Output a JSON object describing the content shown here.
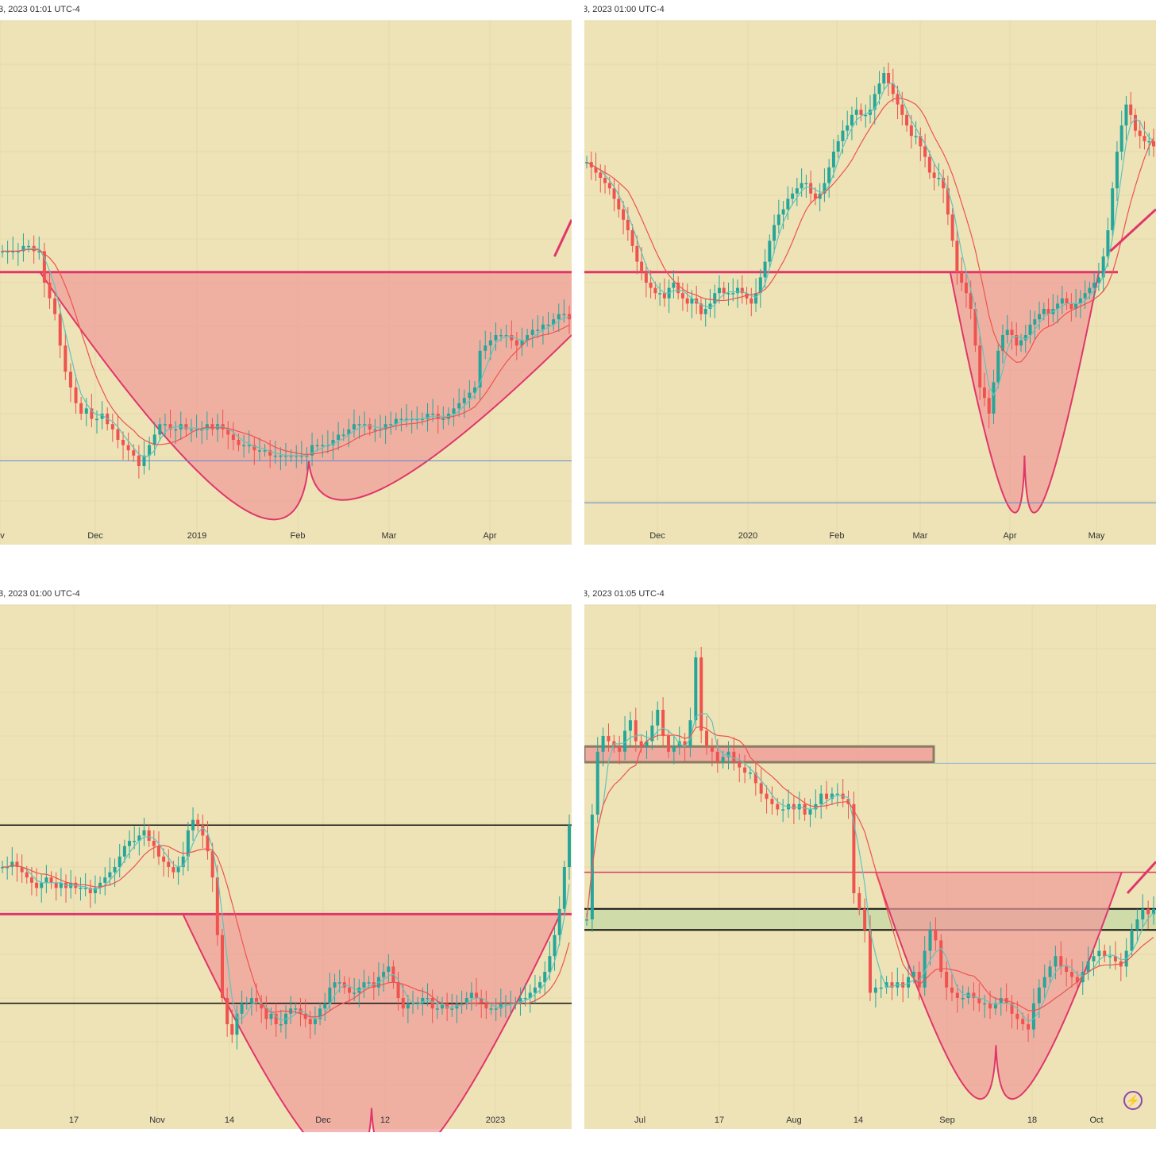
{
  "chart_data": [
    {
      "type": "candlestick",
      "timestamp": "3, 2023 01:01 UTC-4",
      "tick_labels": [
        "ov",
        "Dec",
        "2019",
        "Feb",
        "Mar",
        "Apr"
      ],
      "ylim": [
        0,
        100
      ],
      "colors": {
        "bg": "#ede3b6",
        "up": "#26a69a",
        "down": "#ef5350",
        "cup": "#e0366b",
        "cup_fill": "#ef9a9a",
        "ma_fast": "#5ec4c0",
        "ma_slow": "#ef5350",
        "support": "#5b86d6"
      },
      "resistance": 52,
      "support": 16,
      "cup": {
        "x0": 0.07,
        "x1": 1.0,
        "bottom": 16,
        "bottom_x": 0.54,
        "rim_left": 52,
        "rim_right": 40
      },
      "handle_arrow": {
        "x0": 0.97,
        "y0": 55,
        "x1": 1.0,
        "y1": 62
      },
      "closes": [
        56,
        56,
        56,
        56,
        57,
        57,
        56,
        56,
        50,
        47,
        44,
        38,
        33,
        30,
        27,
        25,
        26,
        24,
        24,
        25,
        23,
        22,
        20,
        19,
        18,
        17,
        15,
        17,
        19,
        21,
        23,
        23,
        22,
        22,
        23,
        22,
        22,
        22,
        22,
        23,
        22,
        23,
        22,
        21,
        20,
        19,
        19,
        19,
        18,
        18,
        18,
        17,
        17,
        17,
        17,
        17,
        17,
        17,
        17,
        19,
        19,
        19,
        19,
        20,
        21,
        21,
        22,
        23,
        23,
        23,
        22,
        22,
        22,
        23,
        23,
        24,
        24,
        24,
        24,
        24,
        24,
        25,
        25,
        24,
        24,
        25,
        26,
        27,
        28,
        29,
        30,
        37,
        38,
        39,
        40,
        40,
        40,
        39,
        38,
        39,
        40,
        41,
        41,
        42,
        42,
        43,
        44,
        44,
        43
      ]
    },
    {
      "type": "candlestick",
      "timestamp": "3, 2023 01:00 UTC-4",
      "tick_labels": [
        "Dec",
        "2020",
        "Feb",
        "Mar",
        "Apr",
        "May"
      ],
      "ylim": [
        0,
        100
      ],
      "colors": {
        "bg": "#ede3b6",
        "up": "#26a69a",
        "down": "#ef5350",
        "cup": "#e0366b",
        "cup_fill": "#ef9a9a",
        "ma_fast": "#5ec4c0",
        "ma_slow": "#ef5350",
        "support": "#5b86d6"
      },
      "resistance": 52,
      "support": 8,
      "cup": {
        "x0": 0.64,
        "x1": 0.9,
        "bottom": 17,
        "bottom_x": 0.77,
        "rim_left": 52,
        "rim_right": 52
      },
      "handle_arrow": {
        "x0": 0.92,
        "y0": 56,
        "x1": 1.0,
        "y1": 64
      },
      "closes": [
        73,
        72,
        71,
        70,
        69,
        68,
        66,
        64,
        62,
        60,
        57,
        54,
        52,
        50,
        49,
        48,
        48,
        47,
        49,
        50,
        48,
        47,
        46,
        47,
        46,
        44,
        45,
        46,
        48,
        49,
        48,
        48,
        48,
        49,
        48,
        47,
        46,
        48,
        51,
        54,
        58,
        61,
        63,
        64,
        66,
        67,
        68,
        69,
        69,
        67,
        66,
        67,
        69,
        72,
        75,
        77,
        79,
        80,
        82,
        83,
        82,
        82,
        83,
        86,
        88,
        90,
        88,
        86,
        84,
        82,
        80,
        78,
        78,
        76,
        74,
        71,
        70,
        70,
        68,
        63,
        58,
        52,
        50,
        48,
        45,
        38,
        30,
        28,
        25,
        31,
        37,
        40,
        41,
        40,
        38,
        39,
        40,
        42,
        43,
        44,
        45,
        44,
        45,
        46,
        47,
        46,
        45,
        46,
        47,
        48,
        49,
        50,
        51,
        55,
        60,
        68,
        75,
        80,
        84,
        82,
        79,
        78,
        77,
        77,
        76
      ]
    },
    {
      "type": "candlestick",
      "timestamp": "3, 2023 01:00 UTC-4",
      "tick_labels": [
        "17",
        "Nov",
        "14",
        "Dec",
        "12",
        "2023"
      ],
      "ylim": [
        0,
        100
      ],
      "colors": {
        "bg": "#ede3b6",
        "up": "#26a69a",
        "down": "#ef5350",
        "cup": "#e0366b",
        "cup_fill": "#ef9a9a",
        "ma_fast": "#5ec4c0",
        "ma_slow": "#ef5350",
        "black": "#111111"
      },
      "resistance": 41,
      "black_lines": [
        58,
        24
      ],
      "cup": {
        "x0": 0.32,
        "x1": 0.98,
        "bottom": 4,
        "bottom_x": 0.65,
        "rim_left": 41,
        "rim_right": 41
      },
      "closes": [
        50,
        50,
        51,
        50,
        49,
        48,
        47,
        46,
        47,
        48,
        47,
        46,
        47,
        46,
        47,
        46,
        46,
        46,
        45,
        46,
        47,
        48,
        49,
        50,
        52,
        54,
        55,
        55,
        56,
        57,
        55,
        54,
        52,
        51,
        50,
        49,
        50,
        52,
        57,
        59,
        58,
        56,
        53,
        48,
        37,
        25,
        20,
        18,
        22,
        24,
        24,
        25,
        24,
        23,
        21,
        22,
        20,
        20,
        22,
        23,
        23,
        22,
        21,
        20,
        21,
        23,
        24,
        27,
        28,
        28,
        27,
        26,
        26,
        27,
        28,
        28,
        27,
        29,
        30,
        31,
        28,
        25,
        23,
        24,
        24,
        24,
        25,
        25,
        23,
        23,
        24,
        23,
        23,
        24,
        24,
        25,
        26,
        25,
        24,
        23,
        23,
        23,
        24,
        24,
        24,
        24,
        25,
        25,
        26,
        27,
        28,
        30,
        33,
        37,
        42,
        50,
        58
      ]
    },
    {
      "type": "candlestick",
      "timestamp": "3, 2023 01:05 UTC-4",
      "tick_labels": [
        "Jul",
        "17",
        "Aug",
        "14",
        "Sep",
        "18",
        "Oct"
      ],
      "ylim": [
        0,
        100
      ],
      "colors": {
        "bg": "#ede3b6",
        "up": "#26a69a",
        "down": "#ef5350",
        "cup": "#e0366b",
        "cup_fill": "#ef9a9a",
        "ma_fast": "#5ec4c0",
        "ma_slow": "#ef5350",
        "black": "#111111",
        "zone_fill": "#c8d8a8",
        "supply_fill": "#ef9a9a",
        "supply_border": "#8a7b63",
        "blue": "#8ab4d9"
      },
      "resistance": 49,
      "supply_zone": [
        70,
        73
      ],
      "blue_line": 71,
      "green_zone": [
        38,
        42
      ],
      "cup": {
        "x0": 0.51,
        "x1": 0.94,
        "bottom": 16,
        "bottom_x": 0.72,
        "rim_left": 49,
        "rim_right": 49
      },
      "handle_arrow": {
        "x0": 0.95,
        "y0": 45,
        "x1": 1.0,
        "y1": 51
      },
      "closes": [
        40,
        60,
        72,
        75,
        74,
        73,
        72,
        76,
        78,
        74,
        73,
        74,
        77,
        80,
        75,
        72,
        73,
        74,
        73,
        78,
        90,
        76,
        73,
        72,
        70,
        71,
        72,
        70,
        69,
        68,
        68,
        66,
        64,
        63,
        62,
        61,
        61,
        62,
        61,
        62,
        60,
        61,
        62,
        64,
        63,
        64,
        64,
        63,
        62,
        45,
        42,
        38,
        26,
        27,
        27,
        28,
        27,
        28,
        27,
        29,
        30,
        27,
        34,
        38,
        36,
        30,
        27,
        26,
        25,
        25,
        26,
        25,
        24,
        24,
        23,
        24,
        25,
        24,
        22,
        21,
        20,
        19,
        24,
        27,
        29,
        31,
        33,
        31,
        30,
        29,
        28,
        30,
        32,
        33,
        34,
        33,
        33,
        32,
        31,
        34,
        38,
        40,
        42,
        41,
        42
      ]
    }
  ]
}
